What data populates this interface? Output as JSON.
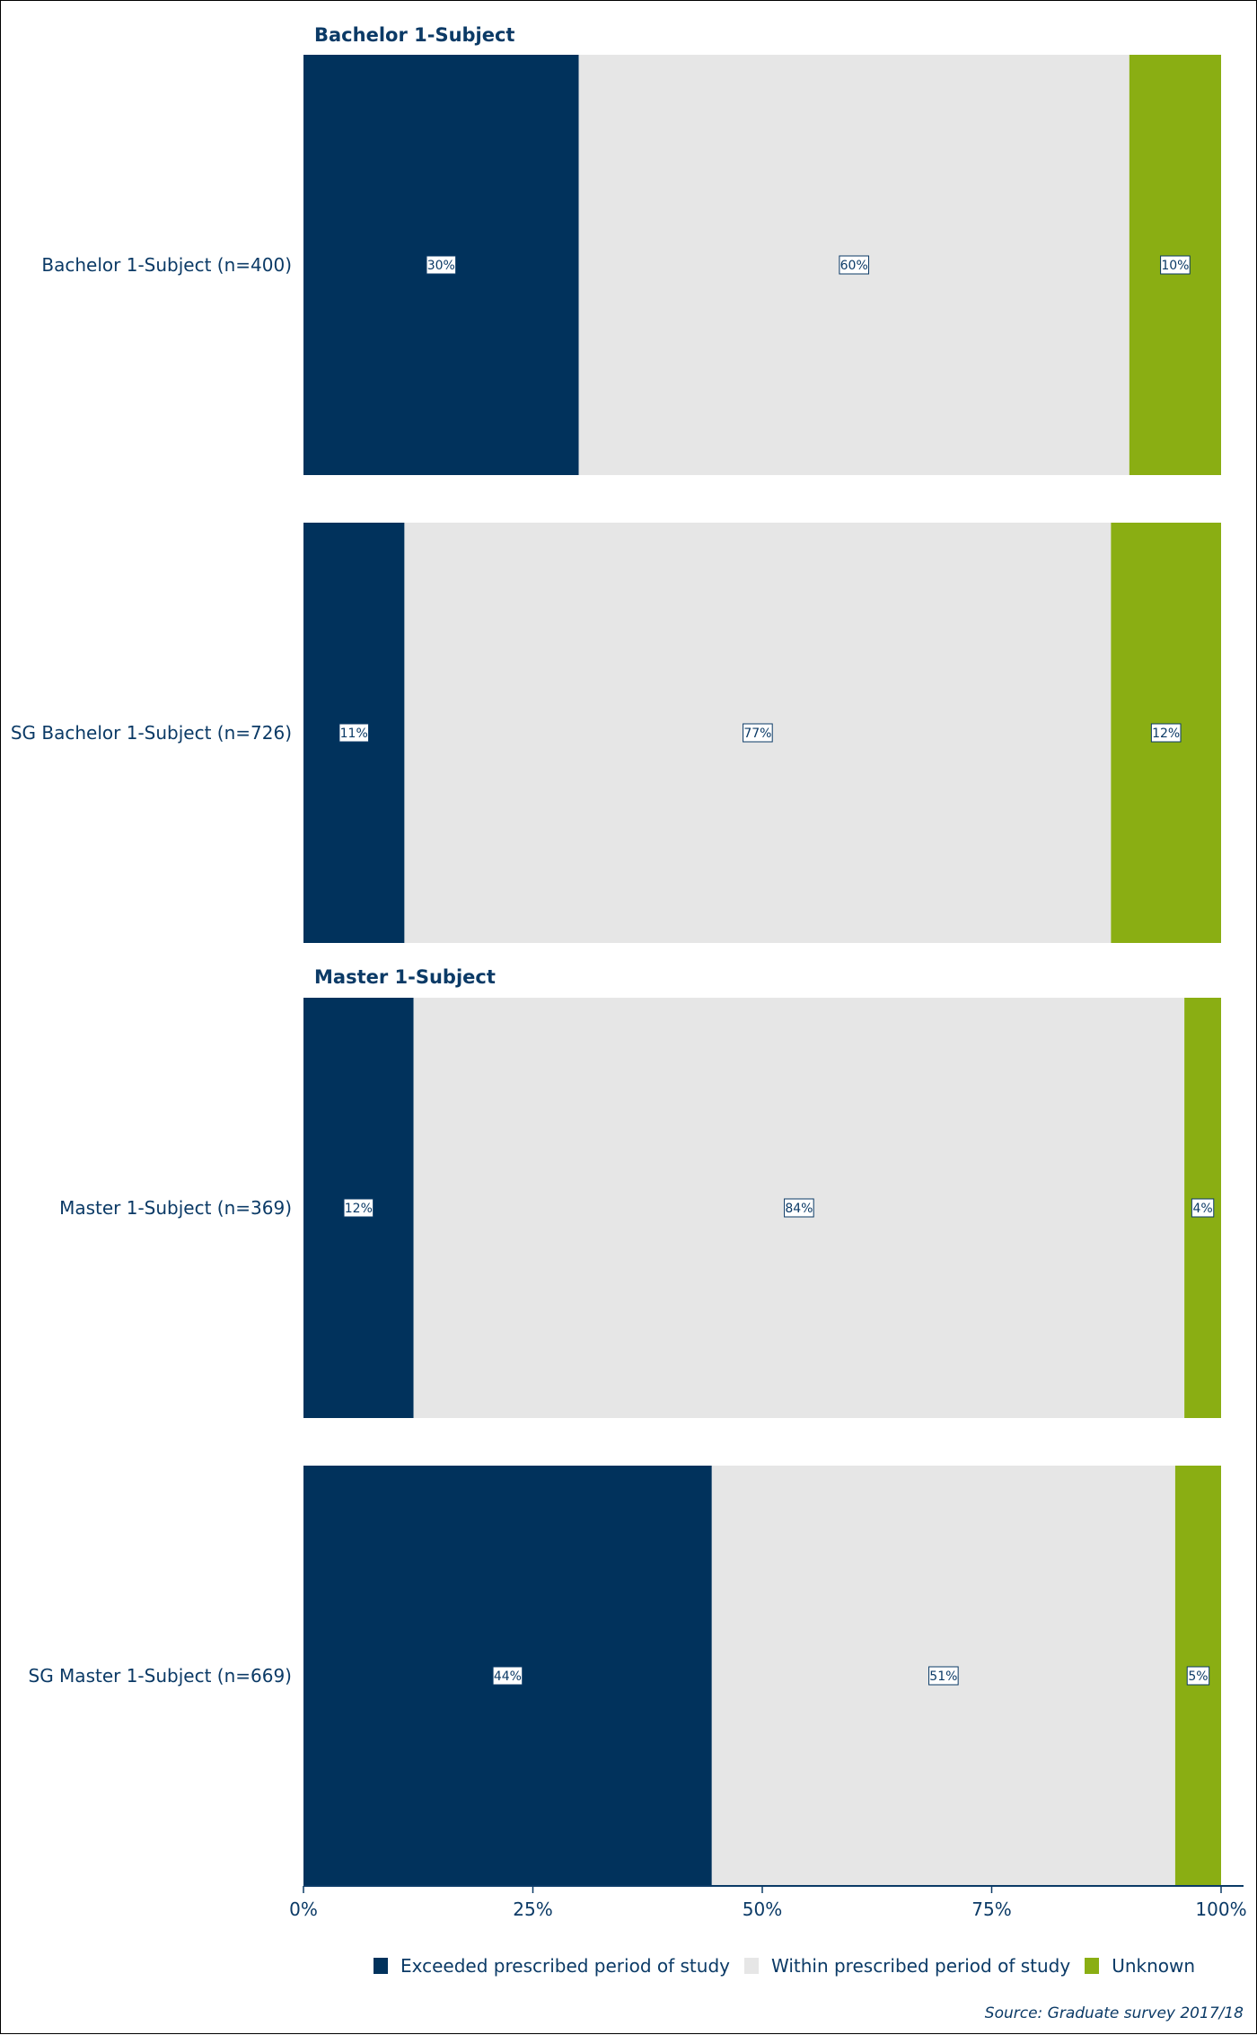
{
  "chart_data": {
    "type": "bar",
    "orientation": "horizontal",
    "stacked": true,
    "panels": [
      {
        "title": "Bachelor 1-Subject",
        "rows": [
          {
            "label": "Bachelor 1-Subject (n=400)",
            "values": [
              30,
              60,
              10
            ],
            "value_labels": [
              "30%",
              "60%",
              "10%"
            ]
          },
          {
            "label": "SG Bachelor 1-Subject (n=726)",
            "values": [
              11,
              77,
              12
            ],
            "value_labels": [
              "11%",
              "77%",
              "12%"
            ]
          }
        ]
      },
      {
        "title": "Master 1-Subject",
        "rows": [
          {
            "label": "Master 1-Subject (n=369)",
            "values": [
              12,
              84,
              4
            ],
            "value_labels": [
              "12%",
              "84%",
              "4%"
            ]
          },
          {
            "label": "SG Master 1-Subject (n=669)",
            "values": [
              44.5,
              50.5,
              5
            ],
            "value_labels": [
              "44%",
              "51%",
              "5%"
            ]
          }
        ]
      }
    ],
    "series": [
      {
        "name": "Exceeded prescribed period of study",
        "color": "#01325c"
      },
      {
        "name": "Within prescribed period of study",
        "color": "#e6e6e6"
      },
      {
        "name": "Unknown",
        "color": "#8aae13"
      }
    ],
    "x_ticks": [
      "0%",
      "25%",
      "50%",
      "75%",
      "100%"
    ],
    "xlim": [
      0,
      100
    ],
    "grid": false,
    "legend_position": "bottom"
  },
  "source": "Source: Graduate survey 2017/18"
}
